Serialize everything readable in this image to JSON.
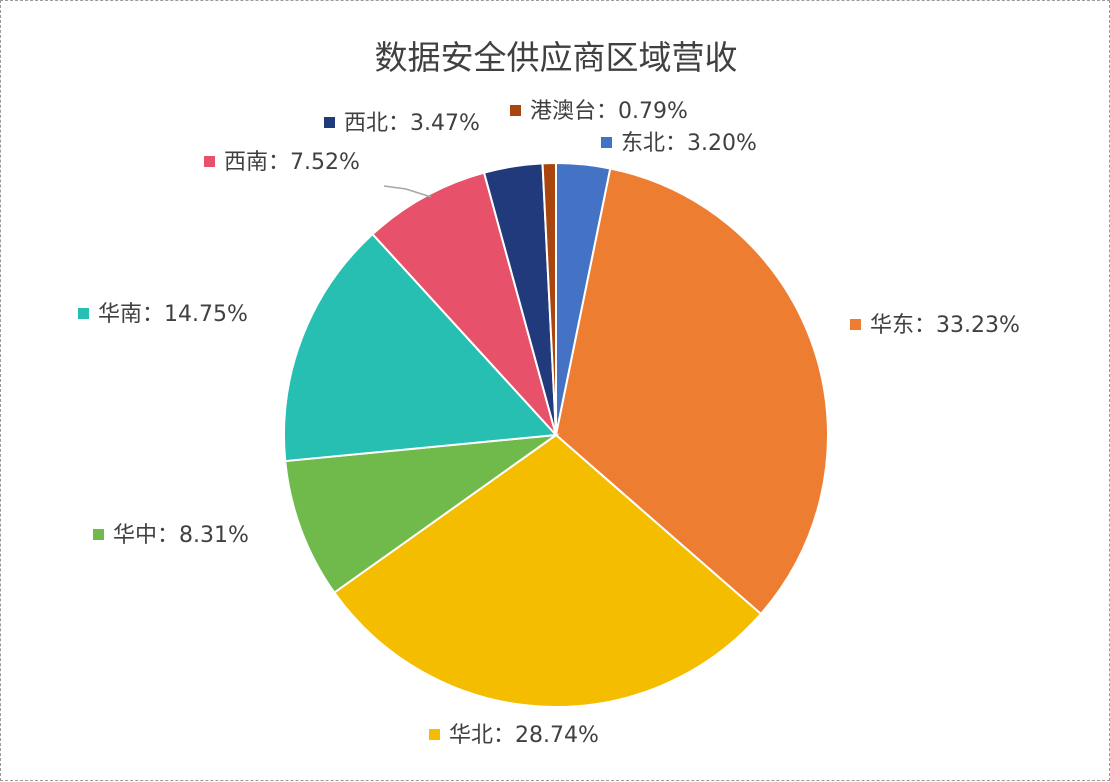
{
  "chart_data": {
    "type": "pie",
    "title": "数据安全供应商区域营收",
    "slices": [
      {
        "name": "东北",
        "label": "东北：3.20%",
        "value": 3.2,
        "color": "#4472C4"
      },
      {
        "name": "华东",
        "label": "华东：33.23%",
        "value": 33.23,
        "color": "#ED7D31"
      },
      {
        "name": "华北",
        "label": "华北：28.74%",
        "value": 28.74,
        "color": "#F5BD00"
      },
      {
        "name": "华中",
        "label": "华中：8.31%",
        "value": 8.31,
        "color": "#70B94B"
      },
      {
        "name": "华南",
        "label": "华南：14.75%",
        "value": 14.75,
        "color": "#26BFB1"
      },
      {
        "name": "西南",
        "label": "西南：7.52%",
        "value": 7.52,
        "color": "#E8516A"
      },
      {
        "name": "西北",
        "label": "西北：3.47%",
        "value": 3.47,
        "color": "#203A7C"
      },
      {
        "name": "港澳台",
        "label": "港澳台：0.79%",
        "value": 0.79,
        "color": "#A9460D"
      }
    ]
  }
}
